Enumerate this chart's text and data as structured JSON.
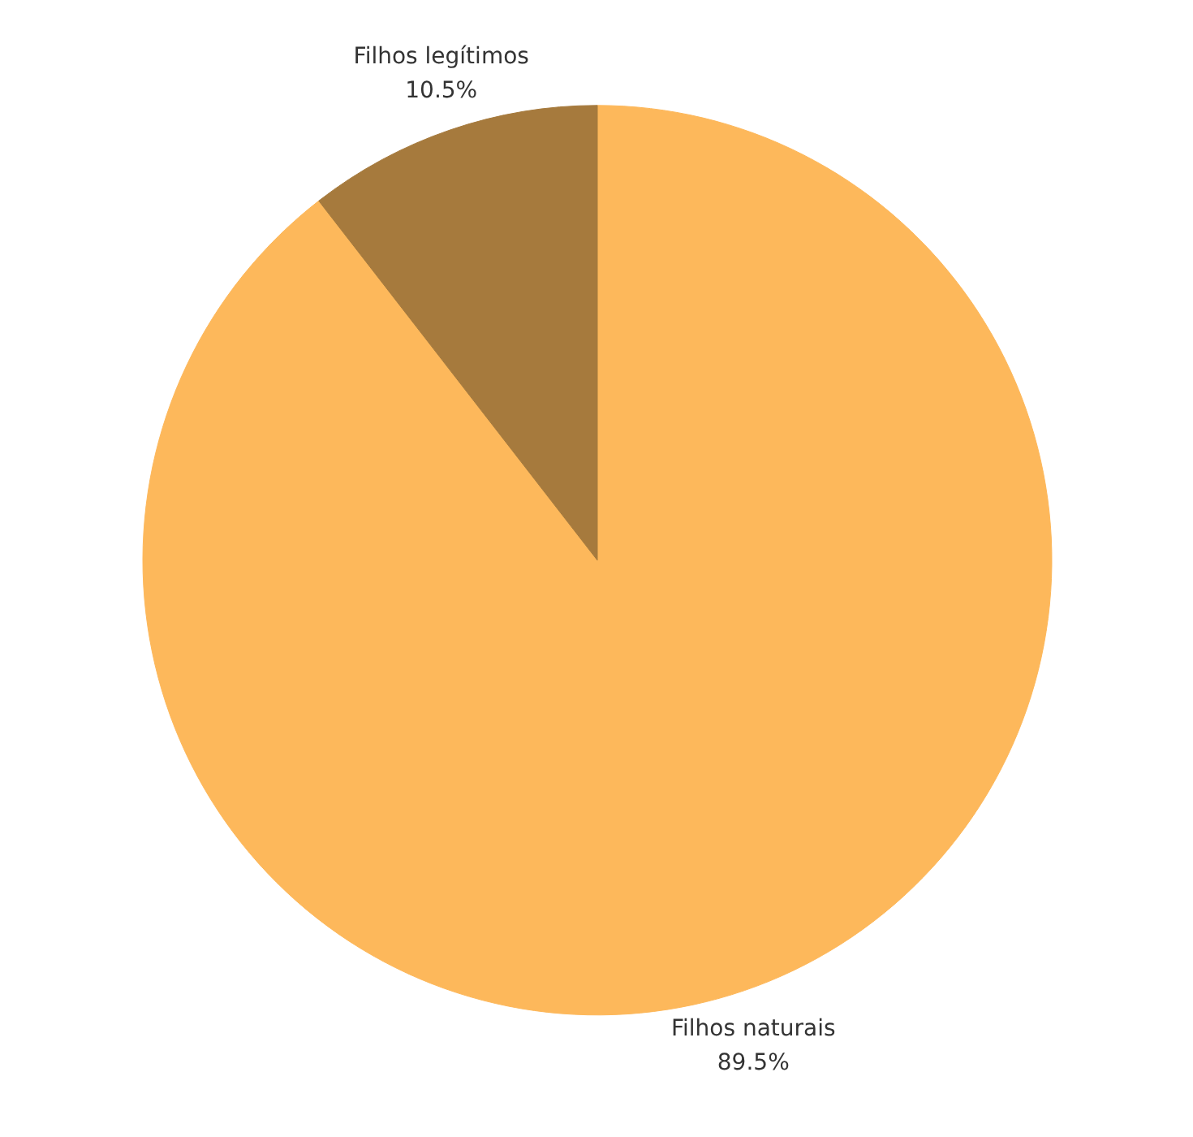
{
  "chart_data": {
    "type": "pie",
    "categories": [
      "Filhos naturais",
      "Filhos legítimos"
    ],
    "values": [
      89.5,
      10.5
    ],
    "colors": [
      "#fdb85b",
      "#a67a3d"
    ],
    "value_labels": [
      "89.5%",
      "10.5%"
    ]
  }
}
